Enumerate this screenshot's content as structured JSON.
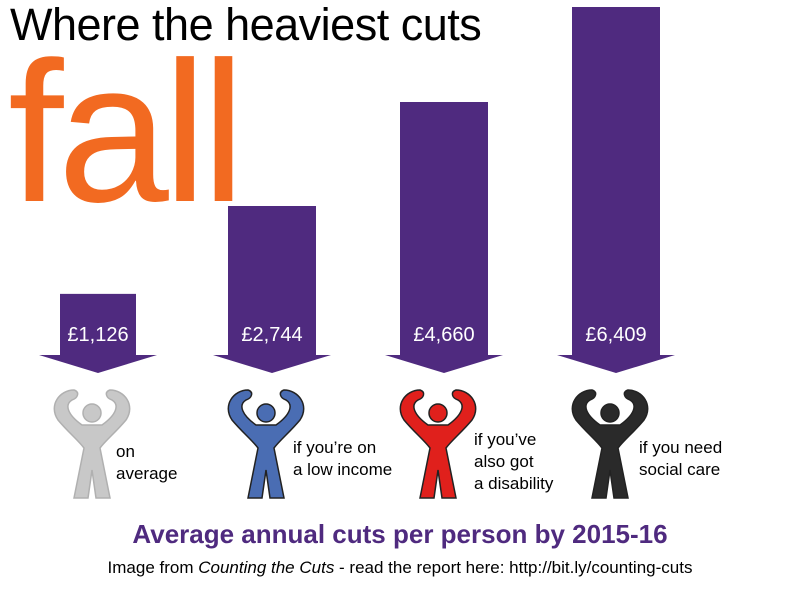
{
  "title_line1": "Where the heaviest cuts",
  "title_line2": "fall",
  "chart_data": {
    "type": "bar",
    "title": "Where the heaviest cuts fall",
    "subtitle": "Average annual cuts per person by 2015-16",
    "categories": [
      "on average",
      "if you’re on a low income",
      "if you’ve also got a disability",
      "if you need social care"
    ],
    "values": [
      1126,
      2744,
      4660,
      6409
    ],
    "value_labels": [
      "£1,126",
      "£2,744",
      "£4,660",
      "£6,409"
    ],
    "unit": "£",
    "figure_colors": [
      "#c8c8c8",
      "#4a6db3",
      "#e0201c",
      "#2a2a2a"
    ],
    "bar_color": "#4f2a7f"
  },
  "labels": [
    "on\naverage",
    "if you’re on\na low income",
    "if you’ve\nalso got\na disability",
    "if you need\nsocial care"
  ],
  "credit": {
    "prefix": "Image from ",
    "report": "Counting the Cuts",
    "suffix": " - read the report here: http://bit.ly/counting-cuts"
  },
  "colors": {
    "accent": "#f26a21",
    "purple": "#4f2a7f"
  }
}
